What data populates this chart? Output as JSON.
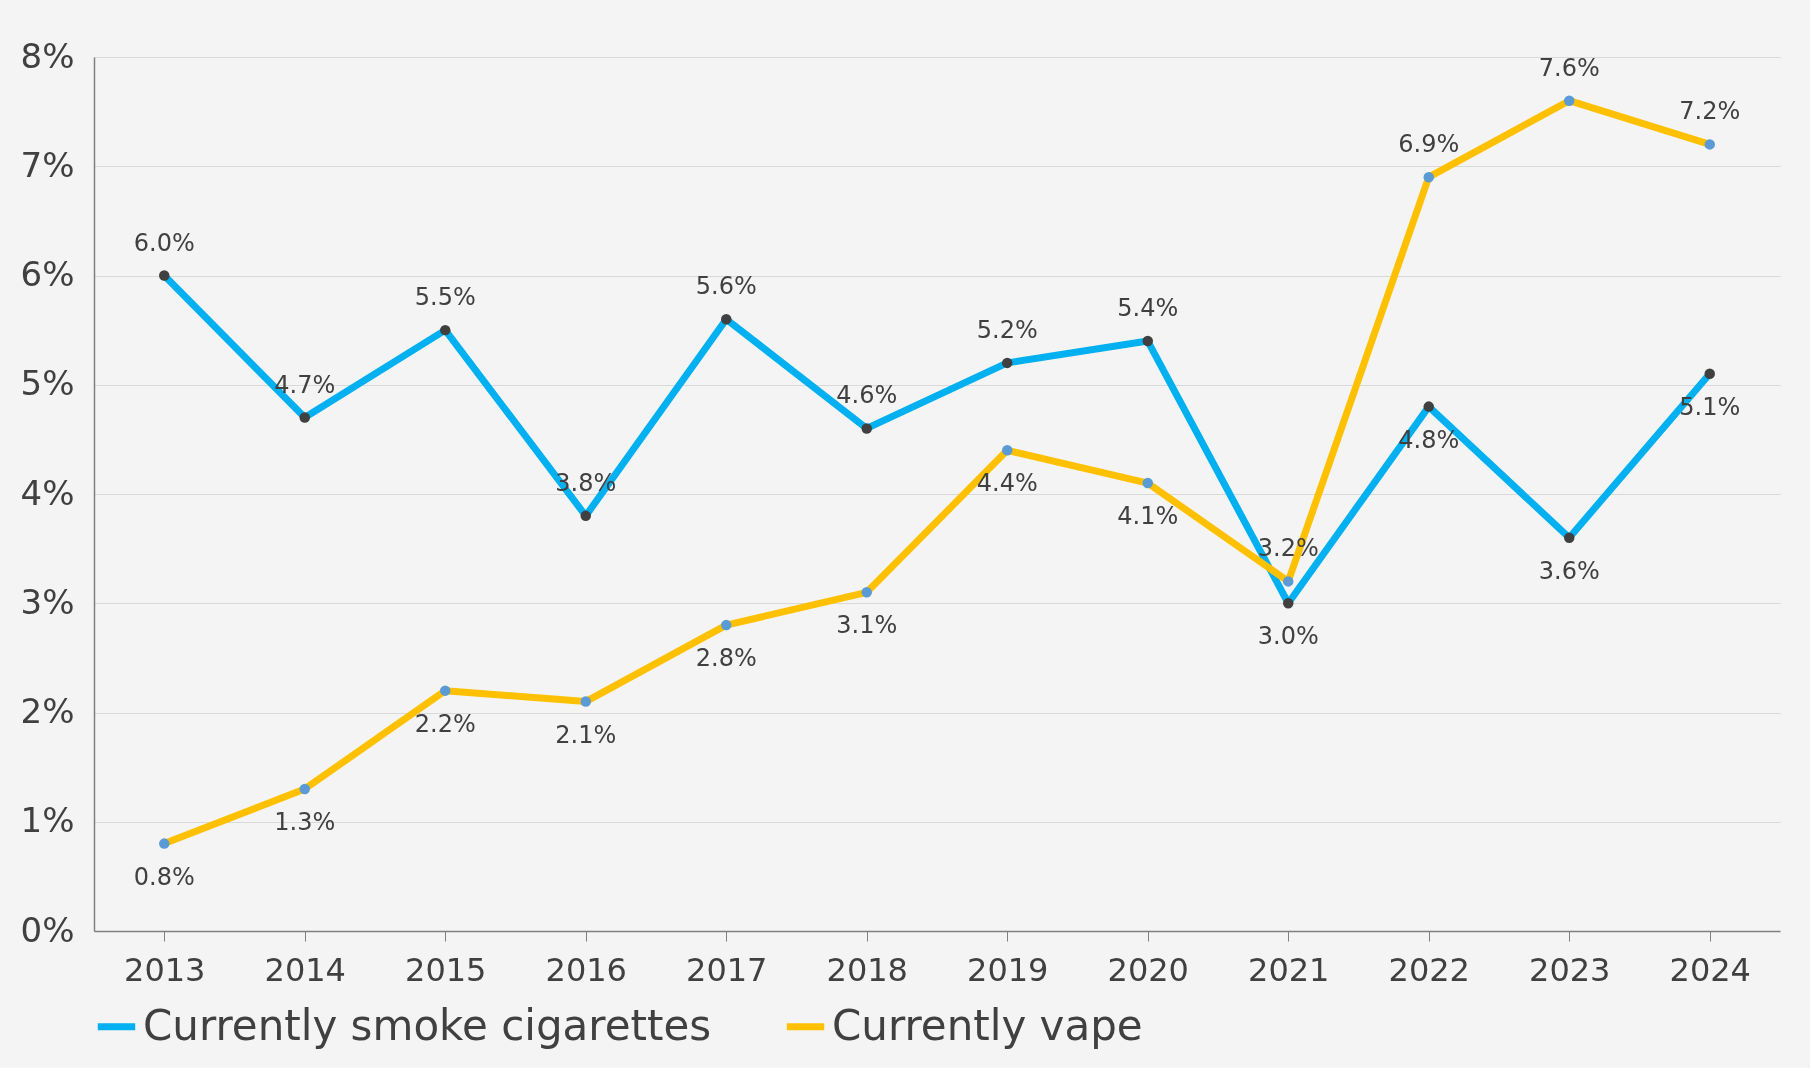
{
  "chart_data": {
    "type": "line",
    "categories": [
      "2013",
      "2014",
      "2015",
      "2016",
      "2017",
      "2018",
      "2019",
      "2020",
      "2021",
      "2022",
      "2023",
      "2024"
    ],
    "series": [
      {
        "name": "Currently smoke cigarettes",
        "color": "#00b0f0",
        "values": [
          6.0,
          4.7,
          5.5,
          3.8,
          5.6,
          4.6,
          5.2,
          5.4,
          3.0,
          4.8,
          3.6,
          5.1
        ],
        "value_labels": [
          "6.0%",
          "4.7%",
          "5.5%",
          "3.8%",
          "5.6%",
          "4.6%",
          "5.2%",
          "5.4%",
          "3.0%",
          "4.8%",
          "3.6%",
          "5.1%"
        ]
      },
      {
        "name": "Currently vape",
        "color": "#ffc000",
        "values": [
          0.8,
          1.3,
          2.2,
          2.1,
          2.8,
          3.1,
          4.4,
          4.1,
          3.2,
          6.9,
          7.6,
          7.2
        ],
        "value_labels": [
          "0.8%",
          "1.3%",
          "2.2%",
          "2.1%",
          "2.8%",
          "3.1%",
          "4.4%",
          "4.1%",
          "3.2%",
          "6.9%",
          "7.6%",
          "7.2%"
        ]
      }
    ],
    "ylim": [
      0,
      8
    ],
    "yticks": [
      {
        "value": 0,
        "label": "0%"
      },
      {
        "value": 1,
        "label": "1%"
      },
      {
        "value": 2,
        "label": "2%"
      },
      {
        "value": 3,
        "label": "3%"
      },
      {
        "value": 4,
        "label": "4%"
      },
      {
        "value": 5,
        "label": "5%"
      },
      {
        "value": 6,
        "label": "6%"
      },
      {
        "value": 7,
        "label": "7%"
      },
      {
        "value": 8,
        "label": "8%"
      }
    ],
    "grid": "y",
    "legend": "bottom",
    "marker": "circle",
    "line_style": "solid"
  }
}
